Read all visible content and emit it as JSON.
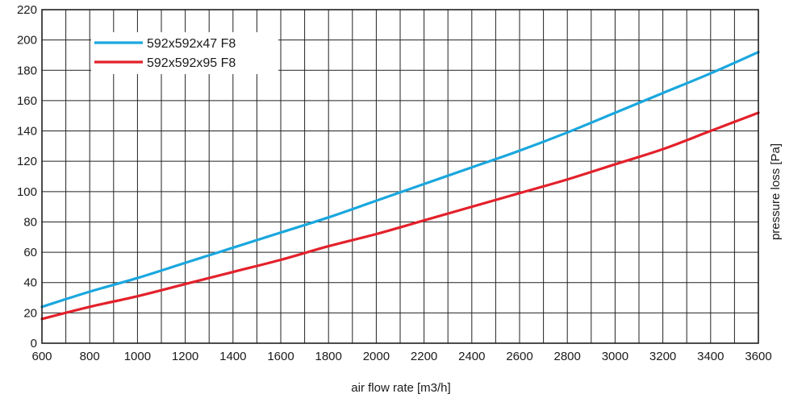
{
  "chart_data": {
    "type": "line",
    "xlabel": "air flow rate [m3/h]",
    "ylabel": "pressure loss [Pa]",
    "xlim": [
      600,
      3600
    ],
    "ylim": [
      0,
      220
    ],
    "x_ticks": [
      600,
      800,
      1000,
      1200,
      1400,
      1600,
      1800,
      2000,
      2200,
      2400,
      2600,
      2800,
      3000,
      3200,
      3400,
      3600
    ],
    "y_ticks": [
      0,
      20,
      40,
      60,
      80,
      100,
      120,
      140,
      160,
      180,
      200,
      220
    ],
    "x_minor_step": 100,
    "grid": true,
    "legend_position": "top-left",
    "series": [
      {
        "name": "592x592x47 F8",
        "color": "#1aa7de",
        "x": [
          600,
          800,
          1000,
          1200,
          1400,
          1600,
          1800,
          2000,
          2200,
          2400,
          2600,
          2800,
          3000,
          3200,
          3400,
          3600
        ],
        "y": [
          24,
          34,
          43,
          53,
          63,
          73,
          83,
          94,
          105,
          116,
          127,
          139,
          152,
          165,
          178,
          192
        ]
      },
      {
        "name": "592x592x95 F8",
        "color": "#e3212b",
        "x": [
          600,
          800,
          1000,
          1200,
          1400,
          1600,
          1800,
          2000,
          2200,
          2400,
          2600,
          2800,
          3000,
          3200,
          3400,
          3600
        ],
        "y": [
          16,
          24,
          31,
          39,
          47,
          55,
          64,
          72,
          81,
          90,
          99,
          108,
          118,
          128,
          140,
          152
        ]
      }
    ]
  }
}
